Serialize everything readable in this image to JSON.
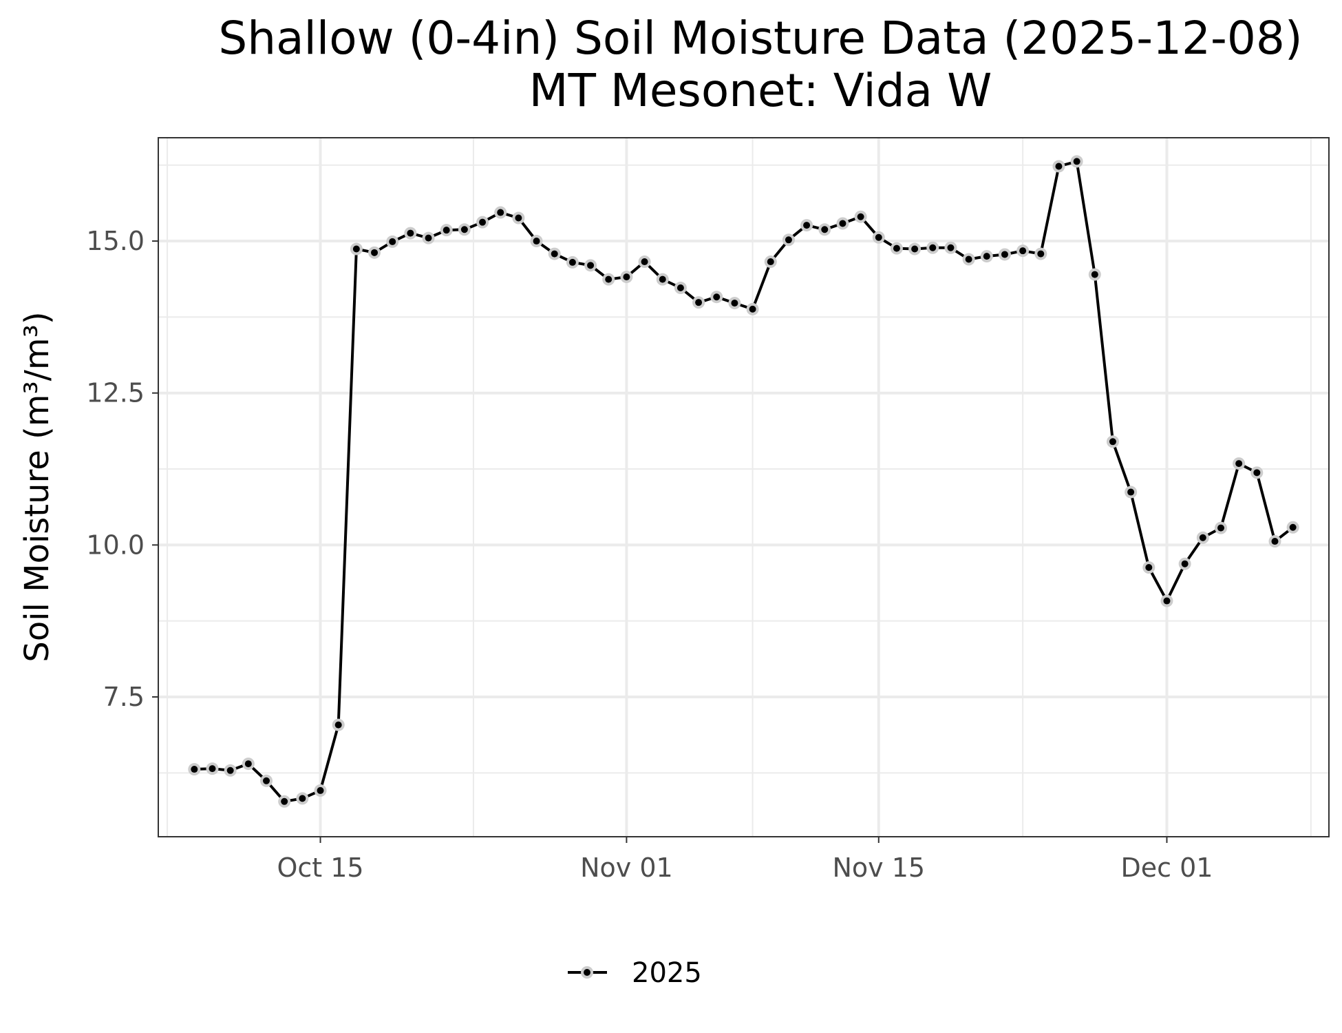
{
  "chart_data": {
    "type": "line",
    "title_line1": "Shallow (0-4in) Soil Moisture Data (2025-12-08)",
    "title_line2": "MT Mesonet: Vida W",
    "xlabel": "",
    "ylabel": "Soil Moisture (m³/m³)",
    "x_ticks": [
      {
        "date": "2025-10-15",
        "label": "Oct 15"
      },
      {
        "date": "2025-11-01",
        "label": "Nov 01"
      },
      {
        "date": "2025-11-15",
        "label": "Nov 15"
      },
      {
        "date": "2025-12-01",
        "label": "Dec 01"
      }
    ],
    "y_ticks": [
      {
        "value": 7.5,
        "label": "7.5"
      },
      {
        "value": 10,
        "label": "10.0"
      },
      {
        "value": 12.5,
        "label": "12.5"
      },
      {
        "value": 15,
        "label": "15.0"
      }
    ],
    "xlim": [
      "2025-10-06",
      "2025-12-10"
    ],
    "ylim": [
      5.2,
      16.7
    ],
    "grid": true,
    "legend_position": "bottom",
    "colors": {
      "line": "#000000",
      "point_halo": "#cccccc",
      "grid": "#ebebeb",
      "panel_border": "#333333",
      "tick_label": "#4d4d4d"
    },
    "series": [
      {
        "name": "2025",
        "x": [
          "2025-10-08",
          "2025-10-09",
          "2025-10-10",
          "2025-10-11",
          "2025-10-12",
          "2025-10-13",
          "2025-10-14",
          "2025-10-15",
          "2025-10-16",
          "2025-10-17",
          "2025-10-18",
          "2025-10-19",
          "2025-10-20",
          "2025-10-21",
          "2025-10-22",
          "2025-10-23",
          "2025-10-24",
          "2025-10-25",
          "2025-10-26",
          "2025-10-27",
          "2025-10-28",
          "2025-10-29",
          "2025-10-30",
          "2025-10-31",
          "2025-11-01",
          "2025-11-02",
          "2025-11-03",
          "2025-11-04",
          "2025-11-05",
          "2025-11-06",
          "2025-11-07",
          "2025-11-08",
          "2025-11-09",
          "2025-11-10",
          "2025-11-11",
          "2025-11-12",
          "2025-11-13",
          "2025-11-14",
          "2025-11-15",
          "2025-11-16",
          "2025-11-17",
          "2025-11-18",
          "2025-11-19",
          "2025-11-20",
          "2025-11-21",
          "2025-11-22",
          "2025-11-23",
          "2025-11-24",
          "2025-11-25",
          "2025-11-26",
          "2025-11-27",
          "2025-11-28",
          "2025-11-29",
          "2025-11-30",
          "2025-12-01",
          "2025-12-02",
          "2025-12-03",
          "2025-12-04",
          "2025-12-05",
          "2025-12-06",
          "2025-12-07",
          "2025-12-08"
        ],
        "values": [
          6.31,
          6.32,
          6.29,
          6.4,
          6.12,
          5.78,
          5.83,
          5.96,
          7.04,
          14.87,
          14.81,
          14.99,
          15.13,
          15.05,
          15.18,
          15.19,
          15.31,
          15.47,
          15.38,
          15.0,
          14.79,
          14.65,
          14.6,
          14.37,
          14.41,
          14.66,
          14.37,
          14.23,
          13.99,
          14.08,
          13.98,
          13.88,
          14.66,
          15.02,
          15.26,
          15.19,
          15.29,
          15.4,
          15.06,
          14.88,
          14.87,
          14.89,
          14.89,
          14.7,
          14.75,
          14.78,
          14.84,
          14.79,
          16.23,
          16.31,
          14.45,
          11.7,
          10.87,
          9.63,
          9.08,
          9.69,
          10.12,
          10.28,
          11.34,
          11.19,
          10.06,
          10.29
        ]
      }
    ]
  }
}
